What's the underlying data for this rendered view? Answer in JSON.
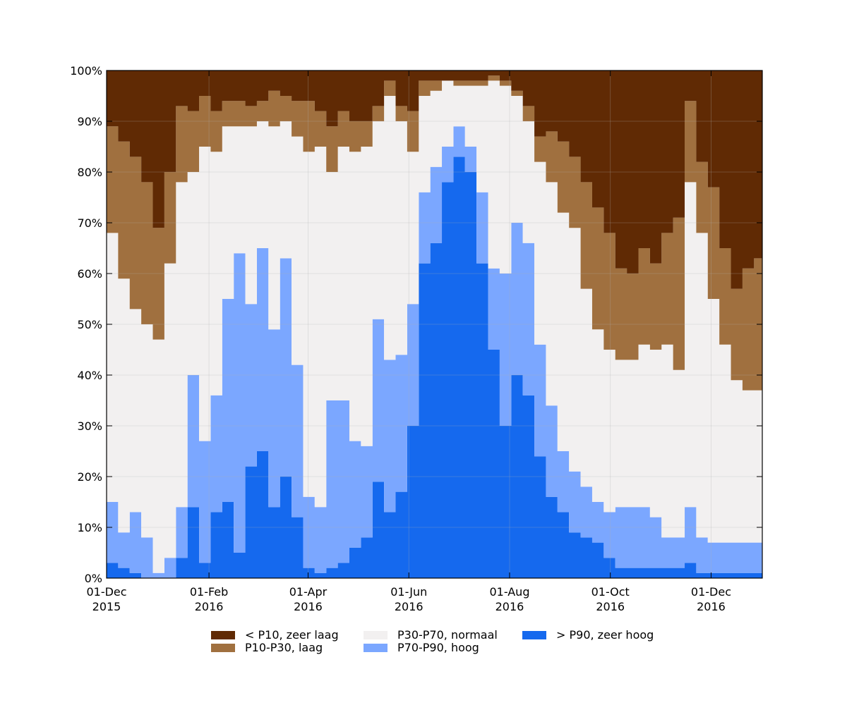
{
  "chart_data": {
    "type": "area",
    "stacked": true,
    "y_format": "percent",
    "ylim": [
      0,
      100
    ],
    "yticks": [
      0,
      10,
      20,
      30,
      40,
      50,
      60,
      70,
      80,
      90,
      100
    ],
    "ytick_labels": [
      "0%",
      "10%",
      "20%",
      "30%",
      "40%",
      "50%",
      "60%",
      "70%",
      "80%",
      "90%",
      "100%"
    ],
    "xlim": [
      "2015-12-01",
      "2016-12-31"
    ],
    "xticks": [
      "2015-12-01",
      "2016-02-01",
      "2016-04-01",
      "2016-06-01",
      "2016-08-01",
      "2016-10-01",
      "2016-12-01"
    ],
    "xtick_labels": [
      [
        "01-Dec",
        "2015"
      ],
      [
        "01-Feb",
        "2016"
      ],
      [
        "01-Apr",
        "2016"
      ],
      [
        "01-Jun",
        "2016"
      ],
      [
        "01-Aug",
        "2016"
      ],
      [
        "01-Oct",
        "2016"
      ],
      [
        "01-Dec",
        "2016"
      ]
    ],
    "grid": true,
    "legend_position": "bottom",
    "x": [
      "2015-12-01",
      "2015-12-08",
      "2015-12-15",
      "2015-12-22",
      "2015-12-29",
      "2016-01-05",
      "2016-01-12",
      "2016-01-19",
      "2016-01-26",
      "2016-02-02",
      "2016-02-09",
      "2016-02-16",
      "2016-02-23",
      "2016-03-01",
      "2016-03-08",
      "2016-03-15",
      "2016-03-22",
      "2016-03-29",
      "2016-04-05",
      "2016-04-12",
      "2016-04-19",
      "2016-04-26",
      "2016-05-03",
      "2016-05-10",
      "2016-05-17",
      "2016-05-24",
      "2016-05-31",
      "2016-06-07",
      "2016-06-14",
      "2016-06-21",
      "2016-06-28",
      "2016-07-05",
      "2016-07-12",
      "2016-07-19",
      "2016-07-26",
      "2016-08-02",
      "2016-08-09",
      "2016-08-16",
      "2016-08-23",
      "2016-08-30",
      "2016-09-06",
      "2016-09-13",
      "2016-09-20",
      "2016-09-27",
      "2016-10-04",
      "2016-10-11",
      "2016-10-18",
      "2016-10-25",
      "2016-11-01",
      "2016-11-08",
      "2016-11-15",
      "2016-11-22",
      "2016-11-29",
      "2016-12-06",
      "2016-12-13",
      "2016-12-20",
      "2016-12-27"
    ],
    "series": [
      {
        "name": "> P90, zeer hoog",
        "color": "#1569ee",
        "values": [
          3,
          2,
          1,
          0,
          0,
          0,
          4,
          14,
          3,
          13,
          15,
          5,
          22,
          25,
          14,
          20,
          12,
          2,
          1,
          2,
          3,
          6,
          8,
          19,
          13,
          17,
          30,
          62,
          66,
          78,
          83,
          80,
          62,
          45,
          30,
          40,
          36,
          24,
          16,
          13,
          9,
          8,
          7,
          4,
          2,
          2,
          2,
          2,
          2,
          2,
          3,
          1,
          1,
          1,
          1,
          1,
          1
        ]
      },
      {
        "name": "P70-P90, hoog",
        "color": "#7ba7ff",
        "values": [
          12,
          7,
          12,
          8,
          1,
          4,
          10,
          26,
          24,
          23,
          40,
          59,
          32,
          40,
          35,
          43,
          30,
          14,
          13,
          33,
          32,
          21,
          18,
          32,
          30,
          27,
          24,
          14,
          15,
          7,
          6,
          5,
          14,
          16,
          30,
          30,
          30,
          22,
          18,
          12,
          12,
          10,
          8,
          9,
          12,
          12,
          12,
          10,
          6,
          6,
          11,
          7,
          6,
          6,
          6,
          6,
          6
        ]
      },
      {
        "name": "P30-P70, normaal",
        "color": "#f2f0f0",
        "values": [
          53,
          50,
          40,
          42,
          46,
          58,
          64,
          40,
          58,
          48,
          34,
          25,
          35,
          25,
          40,
          27,
          45,
          68,
          71,
          45,
          50,
          57,
          59,
          39,
          52,
          46,
          30,
          19,
          15,
          13,
          8,
          12,
          21,
          37,
          37,
          25,
          24,
          36,
          44,
          47,
          48,
          39,
          34,
          32,
          29,
          29,
          32,
          33,
          38,
          33,
          64,
          60,
          48,
          39,
          32,
          30,
          30
        ]
      },
      {
        "name": "P10-P30, laag",
        "color": "#a0703f",
        "values": [
          21,
          27,
          30,
          28,
          22,
          18,
          15,
          12,
          10,
          8,
          5,
          5,
          4,
          4,
          7,
          5,
          7,
          10,
          7,
          9,
          7,
          6,
          5,
          3,
          3,
          3,
          8,
          3,
          2,
          0,
          1,
          1,
          1,
          1,
          1,
          1,
          3,
          5,
          10,
          14,
          14,
          21,
          24,
          23,
          18,
          17,
          19,
          17,
          22,
          30,
          16,
          14,
          22,
          19,
          18,
          24,
          26
        ]
      },
      {
        "name": "< P10, zeer laag",
        "color": "#602a04",
        "values": [
          11,
          14,
          17,
          22,
          31,
          20,
          7,
          8,
          5,
          8,
          6,
          6,
          7,
          6,
          4,
          5,
          6,
          6,
          8,
          11,
          8,
          10,
          10,
          7,
          2,
          7,
          8,
          2,
          2,
          2,
          2,
          2,
          2,
          1,
          2,
          4,
          7,
          13,
          12,
          14,
          17,
          22,
          27,
          32,
          39,
          40,
          35,
          38,
          32,
          29,
          6,
          18,
          23,
          35,
          43,
          39,
          37
        ]
      }
    ],
    "legend_order": [
      "< P10, zeer laag",
      "P10-P30, laag",
      "P30-P70, normaal",
      "P70-P90, hoog",
      "> P90, zeer hoog"
    ]
  }
}
